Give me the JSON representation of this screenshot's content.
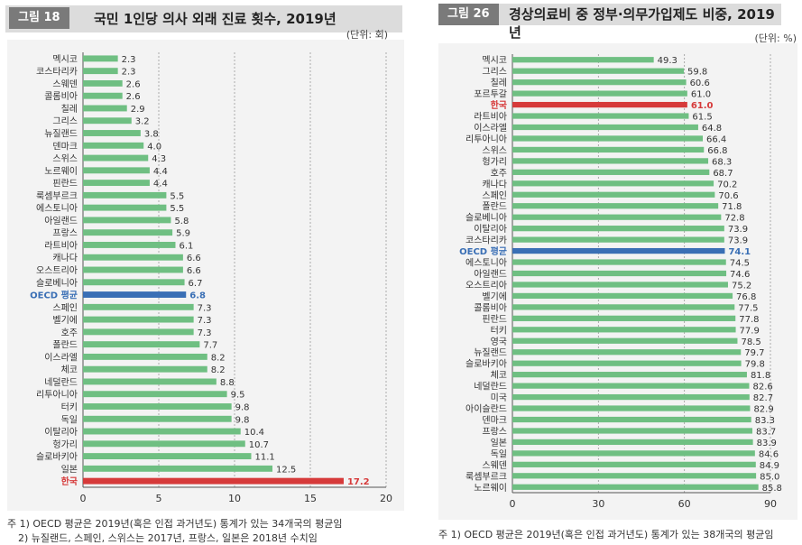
{
  "left": {
    "fig_label": "그림 18",
    "title": "국민 1인당 의사 외래 진료 횟수, 2019년",
    "unit": "(단위: 회)",
    "notes": [
      "주 1) OECD 평균은 2019년(혹은 인접 과거년도) 통계가 있는 34개국의 평균임",
      "2) 뉴질랜드, 스페인, 스위스는 2017년, 프랑스, 일본은 2018년 수치임"
    ],
    "colors": {
      "bar": "#6fbf82",
      "oecd": "#3a6fb5",
      "korea": "#d63a3a"
    }
  },
  "right": {
    "fig_label": "그림 26",
    "title": "경상의료비 중 정부·의무가입제도 비중, 2019년",
    "unit": "(단위: %)",
    "notes": [
      "주 1) OECD 평균은 2019년(혹은 인접 과거년도) 통계가 있는 38개국의 평균임"
    ],
    "colors": {
      "bar": "#6fbf82",
      "oecd": "#3a6fb5",
      "korea": "#d63a3a"
    }
  },
  "chart_data": [
    {
      "type": "bar",
      "orientation": "horizontal",
      "title": "국민 1인당 의사 외래 진료 횟수, 2019년",
      "unit": "(단위: 회)",
      "xlim": [
        0,
        20
      ],
      "xticks": [
        0,
        5,
        10,
        15,
        20
      ],
      "grid": "dashed vertical",
      "categories": [
        "멕시코",
        "코스타리카",
        "스웨덴",
        "콜롬비아",
        "칠레",
        "그리스",
        "뉴질랜드",
        "덴마크",
        "스위스",
        "노르웨이",
        "핀란드",
        "룩셈부르크",
        "에스토니아",
        "아일랜드",
        "프랑스",
        "라트비아",
        "캐나다",
        "오스트리아",
        "슬로베니아",
        "OECD 평균",
        "스페인",
        "벨기에",
        "호주",
        "폴란드",
        "이스라엘",
        "체코",
        "네덜란드",
        "리투아니아",
        "터키",
        "독일",
        "이탈리아",
        "헝가리",
        "슬로바키아",
        "일본",
        "한국"
      ],
      "values": [
        2.3,
        2.3,
        2.6,
        2.6,
        2.9,
        3.2,
        3.8,
        4.0,
        4.3,
        4.4,
        4.4,
        5.5,
        5.5,
        5.8,
        5.9,
        6.1,
        6.6,
        6.6,
        6.7,
        6.8,
        7.3,
        7.3,
        7.3,
        7.7,
        8.2,
        8.2,
        8.8,
        9.5,
        9.8,
        9.8,
        10.4,
        10.7,
        11.1,
        12.5,
        17.2
      ],
      "value_labels": [
        "2.3",
        "2.3",
        "2.6",
        "2.6",
        "2.9",
        "3.2",
        "3.8",
        "4.0",
        "4.3",
        "4.4",
        "4.4",
        "5.5",
        "5.5",
        "5.8",
        "5.9",
        "6.1",
        "6.6",
        "6.6",
        "6.7",
        "6.8",
        "7.3",
        "7.3",
        "7.3",
        "7.7",
        "8.2",
        "8.2",
        "8.8",
        "9.5",
        "9.8",
        "9.8",
        "10.4",
        "10.7",
        "11.1",
        "12.5",
        "17.2"
      ],
      "highlight": {
        "OECD 평균": "oecd",
        "한국": "korea"
      }
    },
    {
      "type": "bar",
      "orientation": "horizontal",
      "title": "경상의료비 중 정부·의무가입제도 비중, 2019년",
      "unit": "(단위: %)",
      "xlim": [
        0,
        90
      ],
      "xticks": [
        0,
        30,
        60,
        90
      ],
      "grid": "dashed vertical",
      "categories": [
        "멕시코",
        "그리스",
        "칠레",
        "포르투갈",
        "한국",
        "라트비아",
        "이스라엘",
        "리투아니아",
        "스위스",
        "헝가리",
        "호주",
        "캐나다",
        "스페인",
        "폴란드",
        "슬로베니아",
        "이탈리아",
        "코스타리카",
        "OECD 평균",
        "에스토니아",
        "아일랜드",
        "오스트리아",
        "벨기에",
        "콜롬비아",
        "핀란드",
        "터키",
        "영국",
        "뉴질랜드",
        "슬로바키아",
        "체코",
        "네덜란드",
        "미국",
        "아이슬란드",
        "덴마크",
        "프랑스",
        "일본",
        "독일",
        "스웨덴",
        "룩셈부르크",
        "노르웨이"
      ],
      "values": [
        49.3,
        59.8,
        60.6,
        61.0,
        61.0,
        61.5,
        64.8,
        66.4,
        66.8,
        68.3,
        68.7,
        70.2,
        70.6,
        71.8,
        72.8,
        73.9,
        73.9,
        74.1,
        74.5,
        74.6,
        75.2,
        76.8,
        77.5,
        77.8,
        77.9,
        78.5,
        79.7,
        79.8,
        81.8,
        82.6,
        82.7,
        82.9,
        83.3,
        83.7,
        83.9,
        84.6,
        84.9,
        85.0,
        85.8
      ],
      "value_labels": [
        "49.3",
        "59.8",
        "60.6",
        "61.0",
        "61.0",
        "61.5",
        "64.8",
        "66.4",
        "66.8",
        "68.3",
        "68.7",
        "70.2",
        "70.6",
        "71.8",
        "72.8",
        "73.9",
        "73.9",
        "74.1",
        "74.5",
        "74.6",
        "75.2",
        "76.8",
        "77.5",
        "77.8",
        "77.9",
        "78.5",
        "79.7",
        "79.8",
        "81.8",
        "82.6",
        "82.7",
        "82.9",
        "83.3",
        "83.7",
        "83.9",
        "84.6",
        "84.9",
        "85.0",
        "85.8"
      ],
      "highlight": {
        "OECD 평균": "oecd",
        "한국": "korea"
      }
    }
  ]
}
